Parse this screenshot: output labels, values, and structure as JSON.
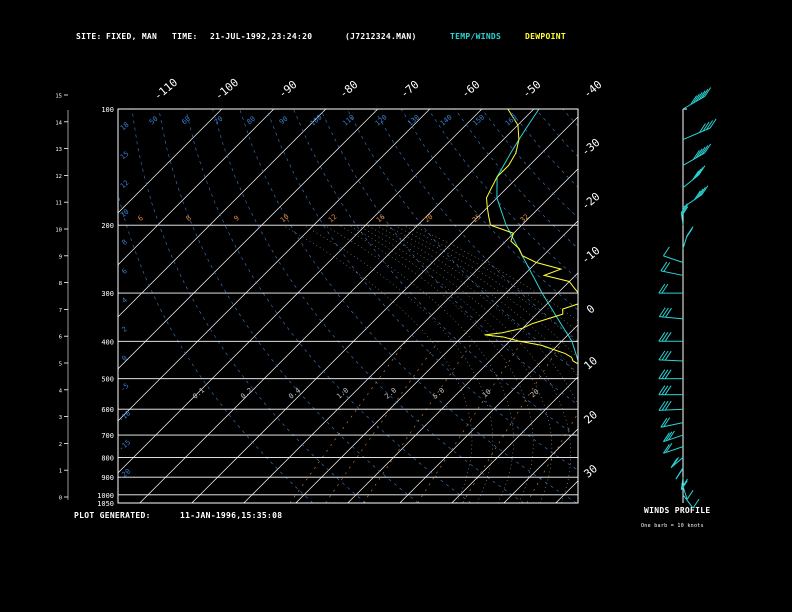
{
  "header": {
    "site_label": "SITE:",
    "site_value": "FIXED, MAN",
    "time_label": "TIME:",
    "time_value": "21-JUL-1992,23:24:20",
    "file": "(J7212324.MAN)",
    "legend_temp": "TEMP/WINDS",
    "legend_dew": "DEWPOINT"
  },
  "footer": {
    "generated_label": "PLOT GENERATED:",
    "generated_value": "11-JAN-1996,15:35:08"
  },
  "winds_profile": {
    "title": "WINDS PROFILE",
    "note": "One barb = 10 knots"
  },
  "colors": {
    "background": "#000000",
    "frame": "#ffffff",
    "temp": "#2ad4d4",
    "dewpoint": "#ffff33",
    "mixing_ratio": "#e08a3c",
    "adiabat": "#3a7fd0",
    "moist": "#c8c8c8"
  },
  "chart_data": {
    "type": "line",
    "title": "",
    "xlabel": "",
    "ylabel": "",
    "pressure_levels_hPa": [
      100,
      200,
      300,
      400,
      500,
      600,
      700,
      800,
      900,
      1000,
      1050
    ],
    "pressure_labels": [
      "100",
      "200",
      "300",
      "400",
      "500",
      "600",
      "700",
      "800",
      "900",
      "1000",
      "1050"
    ],
    "pressure_range_hPa": [
      1050,
      100
    ],
    "height_ticks_km": [
      "0",
      "1",
      "2",
      "3",
      "4",
      "5",
      "6",
      "7",
      "8",
      "9",
      "10",
      "11",
      "12",
      "13",
      "14",
      "15"
    ],
    "isotherms_top": [
      "-110",
      "-100",
      "-90",
      "-80",
      "-70",
      "-60",
      "-50",
      "-40"
    ],
    "isotherms_right": [
      "-30",
      "-20",
      "-10",
      "0",
      "10",
      "20",
      "30"
    ],
    "mixing_ratio_labels": [
      "6",
      "8",
      "9",
      "10",
      "12",
      "16",
      "20",
      "25",
      "32"
    ],
    "mixing_ratio_low_labels": [
      "0.1",
      "0.2",
      "0.4",
      "1.0",
      "2.0",
      "5.0",
      "10",
      "20"
    ],
    "adiabat_labels": [
      "18",
      "50",
      "60",
      "70",
      "80",
      "90",
      "100",
      "110",
      "120",
      "130",
      "140",
      "150",
      "160"
    ],
    "left_adiabat_labels": [
      "18",
      "15",
      "12",
      "10",
      "8",
      "6",
      "4",
      "2",
      "0",
      "-5",
      "-10",
      "-15",
      "-20"
    ],
    "series": [
      {
        "name": "TEMP/WINDS",
        "p": [
          1010,
          1000,
          990,
          980,
          960,
          950,
          930,
          900,
          870,
          850,
          800,
          750,
          700,
          650,
          600,
          550,
          500,
          450,
          400,
          350,
          300,
          250,
          200,
          170,
          150,
          130,
          120,
          110,
          100
        ],
        "t": [
          29,
          26,
          24,
          23,
          22,
          21,
          20,
          18.5,
          16,
          15,
          12,
          9,
          6,
          3,
          0,
          -3,
          -8,
          -13,
          -18,
          -25,
          -33,
          -42,
          -53,
          -60,
          -64,
          -66,
          -67,
          -68,
          -69
        ]
      },
      {
        "name": "DEWPOINT",
        "p": [
          1010,
          1000,
          990,
          980,
          970,
          960,
          950,
          930,
          900,
          880,
          850,
          820,
          800,
          780,
          760,
          740,
          720,
          700,
          680,
          660,
          640,
          620,
          600,
          590,
          580,
          570,
          560,
          550,
          540,
          530,
          520,
          510,
          500,
          490,
          480,
          470,
          460,
          450,
          440,
          430,
          420,
          410,
          400,
          390,
          385,
          380,
          370,
          360,
          350,
          340,
          330,
          320,
          310,
          300,
          290,
          280,
          270,
          260,
          250,
          240,
          230,
          220,
          210,
          200,
          190,
          180,
          170,
          160,
          150,
          140,
          130,
          120,
          110,
          100
        ],
        "t": [
          22,
          21,
          22,
          21,
          20,
          19.5,
          18,
          17,
          16,
          15,
          13,
          11,
          10,
          8.5,
          7,
          6,
          5,
          4.5,
          3.5,
          4,
          2,
          3,
          1,
          -1,
          1,
          -2,
          -1,
          -3,
          -4,
          -2,
          -5,
          -3,
          -6,
          -8,
          -9,
          -10,
          -12,
          -14,
          -15,
          -17,
          -20,
          -23,
          -28,
          -32,
          -36,
          -33,
          -30,
          -29,
          -27,
          -25,
          -26,
          -24,
          -22,
          -26,
          -28,
          -30,
          -36,
          -34,
          -40,
          -44,
          -46,
          -49,
          -50,
          -56,
          -58,
          -60,
          -62,
          -63,
          -64,
          -64,
          -65,
          -67,
          -70,
          -75
        ]
      }
    ],
    "winds": [
      {
        "p": 100,
        "spd": 60,
        "dir": 20
      },
      {
        "p": 120,
        "spd": 40,
        "dir": 30
      },
      {
        "p": 140,
        "spd": 50,
        "dir": 20
      },
      {
        "p": 160,
        "spd": 40,
        "dir": 10
      },
      {
        "p": 180,
        "spd": 40,
        "dir": 15
      },
      {
        "p": 200,
        "spd": 30,
        "dir": 340
      },
      {
        "p": 230,
        "spd": 20,
        "dir": 350
      },
      {
        "p": 250,
        "spd": 10,
        "dir": 300
      },
      {
        "p": 270,
        "spd": 20,
        "dir": 290
      },
      {
        "p": 300,
        "spd": 20,
        "dir": 270
      },
      {
        "p": 350,
        "spd": 25,
        "dir": 280
      },
      {
        "p": 400,
        "spd": 30,
        "dir": 270
      },
      {
        "p": 450,
        "spd": 30,
        "dir": 275
      },
      {
        "p": 500,
        "spd": 30,
        "dir": 270
      },
      {
        "p": 550,
        "spd": 30,
        "dir": 270
      },
      {
        "p": 600,
        "spd": 30,
        "dir": 265
      },
      {
        "p": 650,
        "spd": 20,
        "dir": 250
      },
      {
        "p": 700,
        "spd": 30,
        "dir": 240
      },
      {
        "p": 750,
        "spd": 20,
        "dir": 240
      },
      {
        "p": 800,
        "spd": 20,
        "dir": 220
      },
      {
        "p": 850,
        "spd": 15,
        "dir": 210
      },
      {
        "p": 900,
        "spd": 20,
        "dir": 200
      },
      {
        "p": 950,
        "spd": 10,
        "dir": 190
      },
      {
        "p": 1000,
        "spd": 10,
        "dir": 180
      }
    ]
  }
}
